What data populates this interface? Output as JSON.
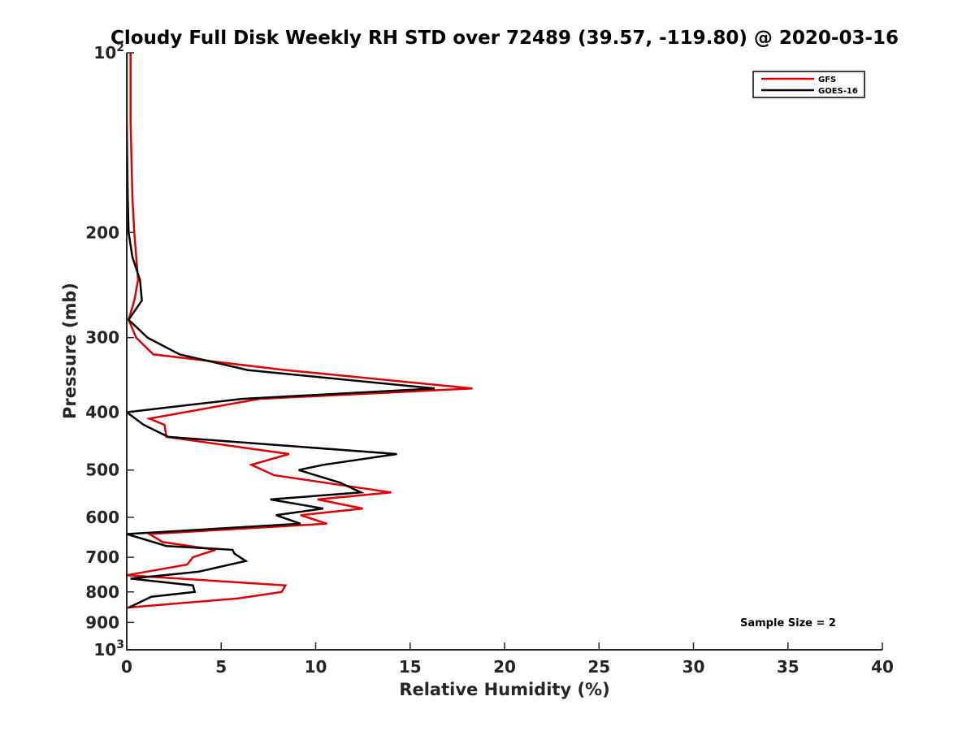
{
  "chart_data": {
    "type": "line",
    "title": "Cloudy Full Disk Weekly RH STD over 72489 (39.57, -119.80) @ 2020-03-16",
    "xlabel": "Relative Humidity (%)",
    "ylabel": "Pressure (mb)",
    "xlim": [
      0,
      40
    ],
    "ylim": [
      100,
      1000
    ],
    "y_scale": "log",
    "y_reversed": true,
    "grid": false,
    "legend_position": "top-right",
    "x_ticks": [
      "0",
      "5",
      "10",
      "15",
      "20",
      "25",
      "30",
      "35",
      "40"
    ],
    "y_tick_labels": [
      {
        "value": 100,
        "base": "10",
        "exp": "2"
      },
      {
        "value": 200,
        "text": "200"
      },
      {
        "value": 300,
        "text": "300"
      },
      {
        "value": 400,
        "text": "400"
      },
      {
        "value": 500,
        "text": "500"
      },
      {
        "value": 600,
        "text": "600"
      },
      {
        "value": 700,
        "text": "700"
      },
      {
        "value": 800,
        "text": "800"
      },
      {
        "value": 900,
        "text": "900"
      },
      {
        "value": 1000,
        "base": "10",
        "exp": "3"
      }
    ],
    "annotation": "Sample Size = 2",
    "series": [
      {
        "name": "GFS",
        "color": "#e00000",
        "x": [
          0.2,
          0.2,
          0.3,
          0.4,
          0.6,
          0.4,
          0.1,
          0.5,
          1.4,
          8.4,
          18.3,
          7.0,
          1.2,
          2.0,
          2.1,
          8.6,
          6.6,
          7.8,
          14.0,
          10.1,
          12.5,
          9.2,
          10.6,
          1.2,
          1.9,
          4.7,
          3.5,
          3.2,
          0.0,
          8.4,
          8.2,
          5.9,
          0.0
        ],
        "y": [
          100,
          130,
          175,
          200,
          240,
          260,
          280,
          300,
          320,
          340,
          365,
          380,
          410,
          420,
          440,
          470,
          490,
          510,
          545,
          560,
          580,
          595,
          615,
          640,
          660,
          680,
          700,
          720,
          750,
          780,
          800,
          820,
          850
        ]
      },
      {
        "name": "GOES-16",
        "color": "#000000",
        "x": [
          0.0,
          0.0,
          0.05,
          0.1,
          0.3,
          0.7,
          0.8,
          0.1,
          1.1,
          2.8,
          6.4,
          16.3,
          6.1,
          0.0,
          0.9,
          2.2,
          14.3,
          10.4,
          9.1,
          11.3,
          12.4,
          7.6,
          10.4,
          7.9,
          9.2,
          0.0,
          2.1,
          5.6,
          5.7,
          6.3,
          3.8,
          0.2,
          3.5,
          3.6,
          1.3,
          0.1
        ],
        "y": [
          100,
          130,
          175,
          200,
          220,
          240,
          260,
          280,
          300,
          320,
          340,
          365,
          380,
          400,
          420,
          440,
          470,
          490,
          500,
          525,
          545,
          560,
          580,
          595,
          615,
          640,
          670,
          680,
          690,
          710,
          740,
          760,
          780,
          800,
          815,
          850
        ]
      }
    ]
  }
}
